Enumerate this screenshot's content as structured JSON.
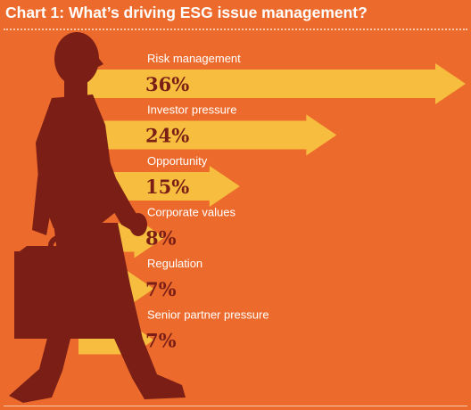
{
  "chart_data": {
    "type": "bar",
    "orientation": "horizontal",
    "title": "Chart 1: What’s driving ESG issue management?",
    "categories": [
      "Risk management",
      "Investor pressure",
      "Opportunity",
      "Corporate values",
      "Regulation",
      "Senior partner pressure"
    ],
    "values": [
      36,
      24,
      15,
      8,
      7,
      7
    ],
    "value_labels": [
      "36%",
      "24%",
      "15%",
      "8%",
      "7%",
      "7%"
    ],
    "unit": "%",
    "xlim": [
      0,
      36
    ],
    "grid": false,
    "legend": "none"
  },
  "colors": {
    "background": "#ec6b2c",
    "arrow": "#f6bd3e",
    "silhouette": "#7a1e16",
    "label": "#ffffff",
    "value": "#7a1e16"
  },
  "icons": {
    "figure": "walking-businessman-silhouette-icon"
  }
}
